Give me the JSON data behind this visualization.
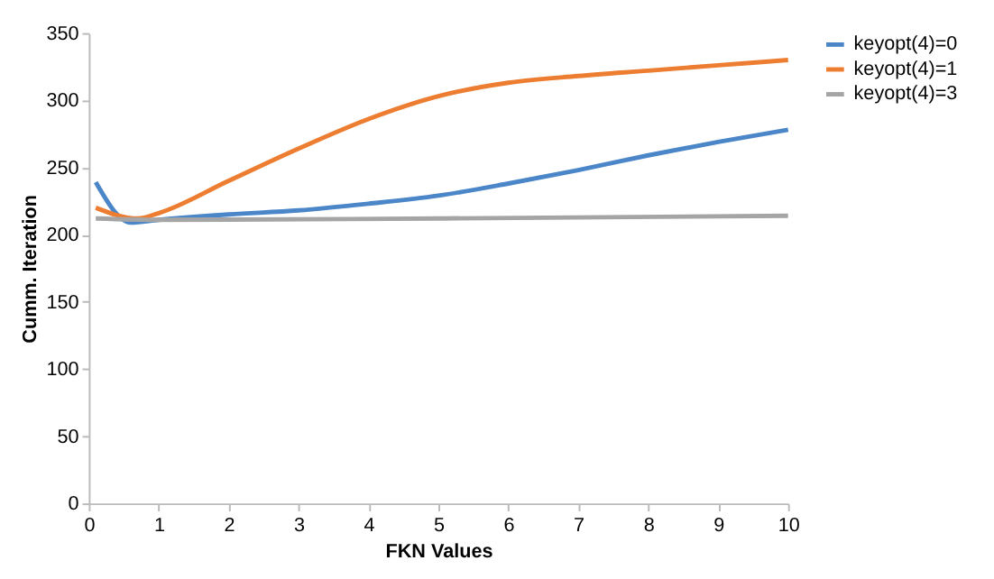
{
  "chart_data": {
    "type": "line",
    "xlabel": "FKN Values",
    "ylabel": "Cumm. Iteration",
    "xlim": [
      0,
      10
    ],
    "xticks": [
      0,
      1,
      2,
      3,
      4,
      5,
      6,
      7,
      8,
      9,
      10
    ],
    "ylim": [
      0,
      350
    ],
    "yticks": [
      0,
      50,
      100,
      150,
      200,
      250,
      300,
      350
    ],
    "grid": false,
    "legend": "right",
    "marker": "none",
    "series": [
      {
        "name": "keyopt(4)=0",
        "color": "#4a86c8",
        "x": [
          0.1,
          0.6,
          1,
          2,
          3,
          4,
          5,
          6,
          7,
          8,
          9,
          10
        ],
        "values": [
          239,
          209,
          211,
          215,
          218,
          223,
          229,
          238,
          248,
          259,
          269,
          278
        ]
      },
      {
        "name": "keyopt(4)=1",
        "color": "#ed7d31",
        "x": [
          0.1,
          0.7,
          1,
          2,
          3,
          4,
          5,
          6,
          7,
          8,
          9,
          10
        ],
        "values": [
          220,
          212,
          216,
          240,
          264,
          286,
          303,
          313,
          318,
          322,
          326,
          330
        ]
      },
      {
        "name": "keyopt(4)=3",
        "color": "#a5a5a5",
        "x": [
          0.1,
          1,
          5,
          10
        ],
        "values": [
          212,
          211,
          212,
          214
        ]
      }
    ]
  }
}
